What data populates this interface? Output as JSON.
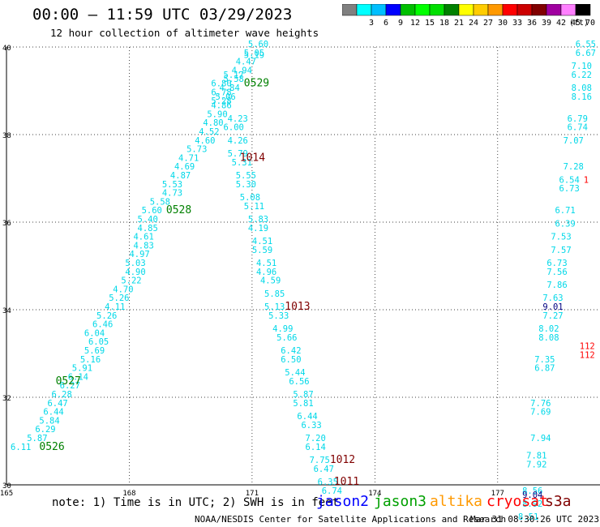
{
  "header": {
    "title": "00:00 – 11:59 UTC 03/29/2023",
    "subtitle": "12 hour collection of altimeter wave heights"
  },
  "legend": {
    "unit": "(ft)",
    "bins": [
      {
        "label": "",
        "color": "#808080"
      },
      {
        "label": "3",
        "color": "#00ffff"
      },
      {
        "label": "6",
        "color": "#00bfff"
      },
      {
        "label": "9",
        "color": "#0000ff"
      },
      {
        "label": "12",
        "color": "#00bf00"
      },
      {
        "label": "15",
        "color": "#00ff00"
      },
      {
        "label": "18",
        "color": "#00df00"
      },
      {
        "label": "21",
        "color": "#008000"
      },
      {
        "label": "24",
        "color": "#ffff00"
      },
      {
        "label": "27",
        "color": "#ffcc00"
      },
      {
        "label": "30",
        "color": "#ff9900"
      },
      {
        "label": "33",
        "color": "#ff0000"
      },
      {
        "label": "36",
        "color": "#cc0000"
      },
      {
        "label": "39",
        "color": "#800000"
      },
      {
        "label": "42",
        "color": "#a000a0"
      },
      {
        "label": "45",
        "color": "#ff80ff"
      },
      {
        "label": "70",
        "color": "#000000"
      }
    ]
  },
  "footer": {
    "note": "note: 1) Time is in UTC; 2) SWH is in feet",
    "satellites": [
      {
        "name": "jason2",
        "color": "#0000ff"
      },
      {
        "name": "jason3",
        "color": "#00a000"
      },
      {
        "name": "altika",
        "color": "#ff9900"
      },
      {
        "name": "cryosat",
        "color": "#ff0000"
      },
      {
        "name": "s3a",
        "color": "#800000"
      }
    ],
    "credit": "NOAA/NESDIS Center for Satellite Applications and Research",
    "generated": "Mar 31 08:30:26 UTC 2023"
  },
  "chart_data": {
    "type": "scatter",
    "xlim": [
      165,
      179.5
    ],
    "ylim": [
      30,
      40
    ],
    "x_ticks": [
      "165",
      "168",
      "171",
      "174",
      "177"
    ],
    "y_ticks": [
      "30",
      "32",
      "34",
      "36",
      "38",
      "40"
    ],
    "grid": true,
    "colors": {
      "cyan": "#00d8e8",
      "green": "#008000",
      "dark": "#800000",
      "red": "#ff0000",
      "navy": "#000080"
    },
    "track_labels": [
      {
        "text": "0526",
        "x": 165.8,
        "y": 30.8,
        "color": "green"
      },
      {
        "text": "0527",
        "x": 166.2,
        "y": 32.3,
        "color": "green"
      },
      {
        "text": "0528",
        "x": 168.9,
        "y": 36.2,
        "color": "green"
      },
      {
        "text": "0529",
        "x": 170.8,
        "y": 39.1,
        "color": "green"
      },
      {
        "text": "1014",
        "x": 170.7,
        "y": 37.4,
        "color": "dark"
      },
      {
        "text": "1013",
        "x": 171.8,
        "y": 34.0,
        "color": "dark"
      },
      {
        "text": "1012",
        "x": 172.9,
        "y": 30.5,
        "color": "dark"
      },
      {
        "text": "1011",
        "x": 173.0,
        "y": 30.0,
        "color": "dark"
      }
    ],
    "points": [
      {
        "x": 165.1,
        "y": 30.8,
        "v": "6.11"
      },
      {
        "x": 165.5,
        "y": 31.0,
        "v": "5.87"
      },
      {
        "x": 165.7,
        "y": 31.2,
        "v": "6.29"
      },
      {
        "x": 165.8,
        "y": 31.4,
        "v": "5.84"
      },
      {
        "x": 165.9,
        "y": 31.6,
        "v": "6.44"
      },
      {
        "x": 166.0,
        "y": 31.8,
        "v": "6.47"
      },
      {
        "x": 166.1,
        "y": 32.0,
        "v": "6.28"
      },
      {
        "x": 166.3,
        "y": 32.2,
        "v": "6.27"
      },
      {
        "x": 166.5,
        "y": 32.4,
        "v": "6.14"
      },
      {
        "x": 166.6,
        "y": 32.6,
        "v": "5.91"
      },
      {
        "x": 166.8,
        "y": 32.8,
        "v": "5.16"
      },
      {
        "x": 166.9,
        "y": 33.0,
        "v": "5.69"
      },
      {
        "x": 167.0,
        "y": 33.2,
        "v": "6.05"
      },
      {
        "x": 166.9,
        "y": 33.4,
        "v": "6.04"
      },
      {
        "x": 167.1,
        "y": 33.6,
        "v": "6.46"
      },
      {
        "x": 167.2,
        "y": 33.8,
        "v": "5.26"
      },
      {
        "x": 167.4,
        "y": 34.0,
        "v": "4.11"
      },
      {
        "x": 167.5,
        "y": 34.2,
        "v": "5.26"
      },
      {
        "x": 167.6,
        "y": 34.4,
        "v": "4.70"
      },
      {
        "x": 167.8,
        "y": 34.6,
        "v": "5.22"
      },
      {
        "x": 167.9,
        "y": 34.8,
        "v": "4.90"
      },
      {
        "x": 167.9,
        "y": 35.0,
        "v": "5.03"
      },
      {
        "x": 168.0,
        "y": 35.2,
        "v": "4.97"
      },
      {
        "x": 168.1,
        "y": 35.4,
        "v": "4.83"
      },
      {
        "x": 168.1,
        "y": 35.6,
        "v": "4.61"
      },
      {
        "x": 168.2,
        "y": 35.8,
        "v": "4.85"
      },
      {
        "x": 168.2,
        "y": 36.0,
        "v": "5.40"
      },
      {
        "x": 168.3,
        "y": 36.2,
        "v": "5.60"
      },
      {
        "x": 168.5,
        "y": 36.4,
        "v": "5.58"
      },
      {
        "x": 168.8,
        "y": 36.6,
        "v": "4.73"
      },
      {
        "x": 168.8,
        "y": 36.8,
        "v": "5.53"
      },
      {
        "x": 169.0,
        "y": 37.0,
        "v": "4.87"
      },
      {
        "x": 169.1,
        "y": 37.2,
        "v": "4.69"
      },
      {
        "x": 169.2,
        "y": 37.4,
        "v": "4.71"
      },
      {
        "x": 169.4,
        "y": 37.6,
        "v": "5.73"
      },
      {
        "x": 169.6,
        "y": 37.8,
        "v": "4.60"
      },
      {
        "x": 169.7,
        "y": 38.0,
        "v": "4.52"
      },
      {
        "x": 169.8,
        "y": 38.2,
        "v": "4.80"
      },
      {
        "x": 169.9,
        "y": 38.4,
        "v": "5.90"
      },
      {
        "x": 170.0,
        "y": 38.6,
        "v": "4.86"
      },
      {
        "x": 170.1,
        "y": 38.8,
        "v": "5.06"
      },
      {
        "x": 170.2,
        "y": 39.0,
        "v": "4.84"
      },
      {
        "x": 170.3,
        "y": 39.2,
        "v": "5.58"
      },
      {
        "x": 170.5,
        "y": 39.4,
        "v": "4.94"
      },
      {
        "x": 170.6,
        "y": 39.6,
        "v": "4.47"
      },
      {
        "x": 170.8,
        "y": 39.8,
        "v": "5.05"
      },
      {
        "x": 170.9,
        "y": 40.0,
        "v": "5.60"
      },
      {
        "x": 170.8,
        "y": 39.75,
        "v": "5.19"
      },
      {
        "x": 170.3,
        "y": 39.3,
        "v": "5.17"
      },
      {
        "x": 170.0,
        "y": 39.1,
        "v": "6.80"
      },
      {
        "x": 170.0,
        "y": 38.9,
        "v": "6.78"
      },
      {
        "x": 170.0,
        "y": 38.7,
        "v": "5.28"
      },
      {
        "x": 170.4,
        "y": 38.3,
        "v": "4.23"
      },
      {
        "x": 170.3,
        "y": 38.1,
        "v": "6.00"
      },
      {
        "x": 170.4,
        "y": 37.8,
        "v": "4.26"
      },
      {
        "x": 170.4,
        "y": 37.5,
        "v": "5.79"
      },
      {
        "x": 170.5,
        "y": 37.3,
        "v": "5.31"
      },
      {
        "x": 170.6,
        "y": 37.0,
        "v": "5.55"
      },
      {
        "x": 170.6,
        "y": 36.8,
        "v": "5.30"
      },
      {
        "x": 170.7,
        "y": 36.5,
        "v": "5.08"
      },
      {
        "x": 170.8,
        "y": 36.3,
        "v": "5.11"
      },
      {
        "x": 170.9,
        "y": 36.0,
        "v": "5.83"
      },
      {
        "x": 170.9,
        "y": 35.8,
        "v": "4.19"
      },
      {
        "x": 171.0,
        "y": 35.5,
        "v": "4.51"
      },
      {
        "x": 171.0,
        "y": 35.3,
        "v": "5.59"
      },
      {
        "x": 171.1,
        "y": 35.0,
        "v": "4.51"
      },
      {
        "x": 171.1,
        "y": 34.8,
        "v": "4.96"
      },
      {
        "x": 171.2,
        "y": 34.6,
        "v": "4.59"
      },
      {
        "x": 171.3,
        "y": 34.3,
        "v": "5.85"
      },
      {
        "x": 171.3,
        "y": 34.0,
        "v": "5.13"
      },
      {
        "x": 171.4,
        "y": 33.8,
        "v": "5.33"
      },
      {
        "x": 171.5,
        "y": 33.5,
        "v": "4.99"
      },
      {
        "x": 171.6,
        "y": 33.3,
        "v": "5.66"
      },
      {
        "x": 171.7,
        "y": 33.0,
        "v": "6.42"
      },
      {
        "x": 171.7,
        "y": 32.8,
        "v": "6.50"
      },
      {
        "x": 171.8,
        "y": 32.5,
        "v": "5.44"
      },
      {
        "x": 171.9,
        "y": 32.3,
        "v": "6.56"
      },
      {
        "x": 172.0,
        "y": 32.0,
        "v": "5.87"
      },
      {
        "x": 172.0,
        "y": 31.8,
        "v": "5.81"
      },
      {
        "x": 172.1,
        "y": 31.5,
        "v": "6.44"
      },
      {
        "x": 172.2,
        "y": 31.3,
        "v": "6.33"
      },
      {
        "x": 172.3,
        "y": 31.0,
        "v": "7.20"
      },
      {
        "x": 172.3,
        "y": 30.8,
        "v": "6.14"
      },
      {
        "x": 172.4,
        "y": 30.5,
        "v": "7.75"
      },
      {
        "x": 172.5,
        "y": 30.3,
        "v": "6.47"
      },
      {
        "x": 172.6,
        "y": 30.0,
        "v": "6.35"
      },
      {
        "x": 172.7,
        "y": 29.8,
        "v": "6.74"
      },
      {
        "x": 178.9,
        "y": 40.0,
        "v": "6.55"
      },
      {
        "x": 178.9,
        "y": 39.8,
        "v": "6.67"
      },
      {
        "x": 178.8,
        "y": 39.5,
        "v": "7.10"
      },
      {
        "x": 178.8,
        "y": 39.3,
        "v": "6.22"
      },
      {
        "x": 178.8,
        "y": 39.0,
        "v": "8.08"
      },
      {
        "x": 178.8,
        "y": 38.8,
        "v": "8.16"
      },
      {
        "x": 178.7,
        "y": 38.3,
        "v": "6.79"
      },
      {
        "x": 178.7,
        "y": 38.1,
        "v": "6.74"
      },
      {
        "x": 178.6,
        "y": 37.8,
        "v": "7.07"
      },
      {
        "x": 178.6,
        "y": 37.2,
        "v": "7.28"
      },
      {
        "x": 178.5,
        "y": 36.9,
        "v": "6.54"
      },
      {
        "x": 178.5,
        "y": 36.7,
        "v": "6.73"
      },
      {
        "x": 178.4,
        "y": 36.2,
        "v": "6.71"
      },
      {
        "x": 178.4,
        "y": 35.9,
        "v": "6.39"
      },
      {
        "x": 178.3,
        "y": 35.6,
        "v": "7.53"
      },
      {
        "x": 178.3,
        "y": 35.3,
        "v": "7.57"
      },
      {
        "x": 178.2,
        "y": 35.0,
        "v": "6.73"
      },
      {
        "x": 178.2,
        "y": 34.8,
        "v": "7.56"
      },
      {
        "x": 178.2,
        "y": 34.5,
        "v": "7.86"
      },
      {
        "x": 178.1,
        "y": 34.2,
        "v": "7.63"
      },
      {
        "x": 178.1,
        "y": 33.8,
        "v": "7.27"
      },
      {
        "x": 178.0,
        "y": 33.5,
        "v": "8.02"
      },
      {
        "x": 178.0,
        "y": 33.3,
        "v": "8.08"
      },
      {
        "x": 177.9,
        "y": 32.8,
        "v": "7.35"
      },
      {
        "x": 177.9,
        "y": 32.6,
        "v": "6.87"
      },
      {
        "x": 177.8,
        "y": 31.8,
        "v": "7.76"
      },
      {
        "x": 177.8,
        "y": 31.6,
        "v": "7.69"
      },
      {
        "x": 177.8,
        "y": 31.0,
        "v": "7.94"
      },
      {
        "x": 177.7,
        "y": 30.6,
        "v": "7.81"
      },
      {
        "x": 177.7,
        "y": 30.4,
        "v": "7.92"
      },
      {
        "x": 177.6,
        "y": 29.8,
        "v": "8.56"
      },
      {
        "x": 177.6,
        "y": 29.5,
        "v": "8.92"
      },
      {
        "x": 177.5,
        "y": 29.2,
        "v": "8.51"
      }
    ],
    "navy_points": [
      {
        "x": 178.1,
        "y": 34.0,
        "v": "9.01"
      },
      {
        "x": 177.6,
        "y": 29.7,
        "v": "9.04"
      }
    ],
    "red_points": [
      {
        "x": 179.1,
        "y": 36.9,
        "v": "1"
      },
      {
        "x": 179.0,
        "y": 33.1,
        "v": "112"
      },
      {
        "x": 179.0,
        "y": 32.9,
        "v": "112"
      }
    ]
  }
}
